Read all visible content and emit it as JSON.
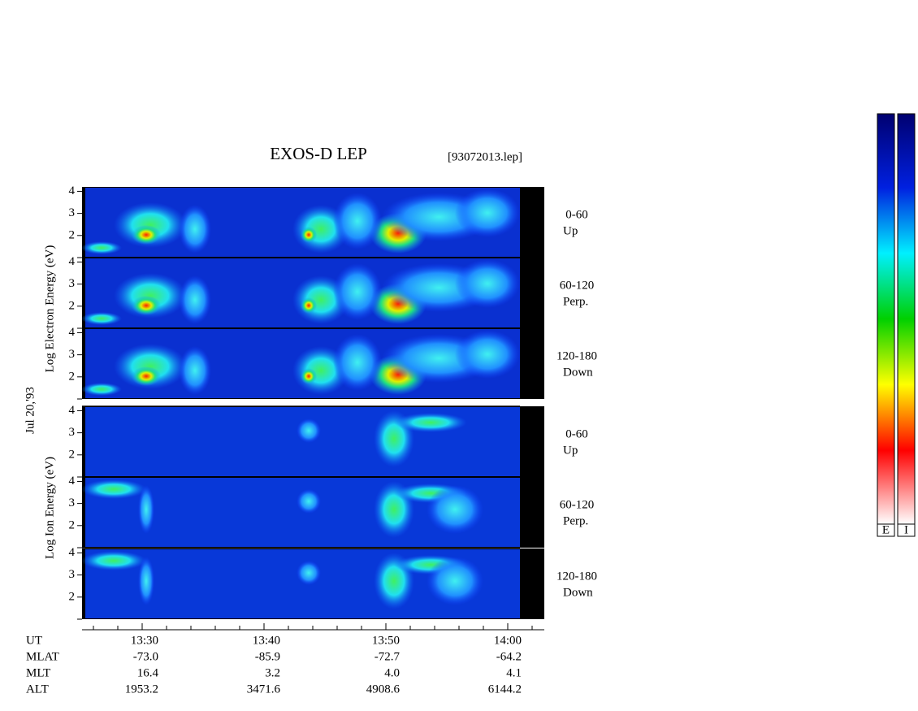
{
  "chart_data": {
    "type": "spectrogram",
    "title": "EXOS-D LEP",
    "file_label": "[93072013.lep]",
    "date_label": "Jul 20,'93",
    "electron_axis_label": "Log  Electron  Energy (eV)",
    "ion_axis_label": "Log  Ion  Energy (eV)",
    "ylim": [
      1,
      4.2
    ],
    "yticks": [
      2,
      3,
      4
    ],
    "panels": [
      {
        "angle": "0-60",
        "direction": "Up"
      },
      {
        "angle": "60-120",
        "direction": "Perp."
      },
      {
        "angle": "120-180",
        "direction": "Down"
      },
      {
        "angle": "0-60",
        "direction": "Up"
      },
      {
        "angle": "60-120",
        "direction": "Perp."
      },
      {
        "angle": "120-180",
        "direction": "Down"
      }
    ],
    "ephemeris": [
      {
        "name": "UT",
        "values": [
          "13:30",
          "13:40",
          "13:50",
          "14:00"
        ]
      },
      {
        "name": "MLAT",
        "values": [
          "-73.0",
          "-85.9",
          "-72.7",
          "-64.2"
        ]
      },
      {
        "name": "MLT",
        "values": [
          "16.4",
          "3.2",
          "4.0",
          "4.1"
        ]
      },
      {
        "name": "ALT",
        "values": [
          "1953.2",
          "3471.6",
          "4908.6",
          "6144.2"
        ]
      }
    ],
    "colorbar_labels": [
      "E",
      "I"
    ]
  }
}
